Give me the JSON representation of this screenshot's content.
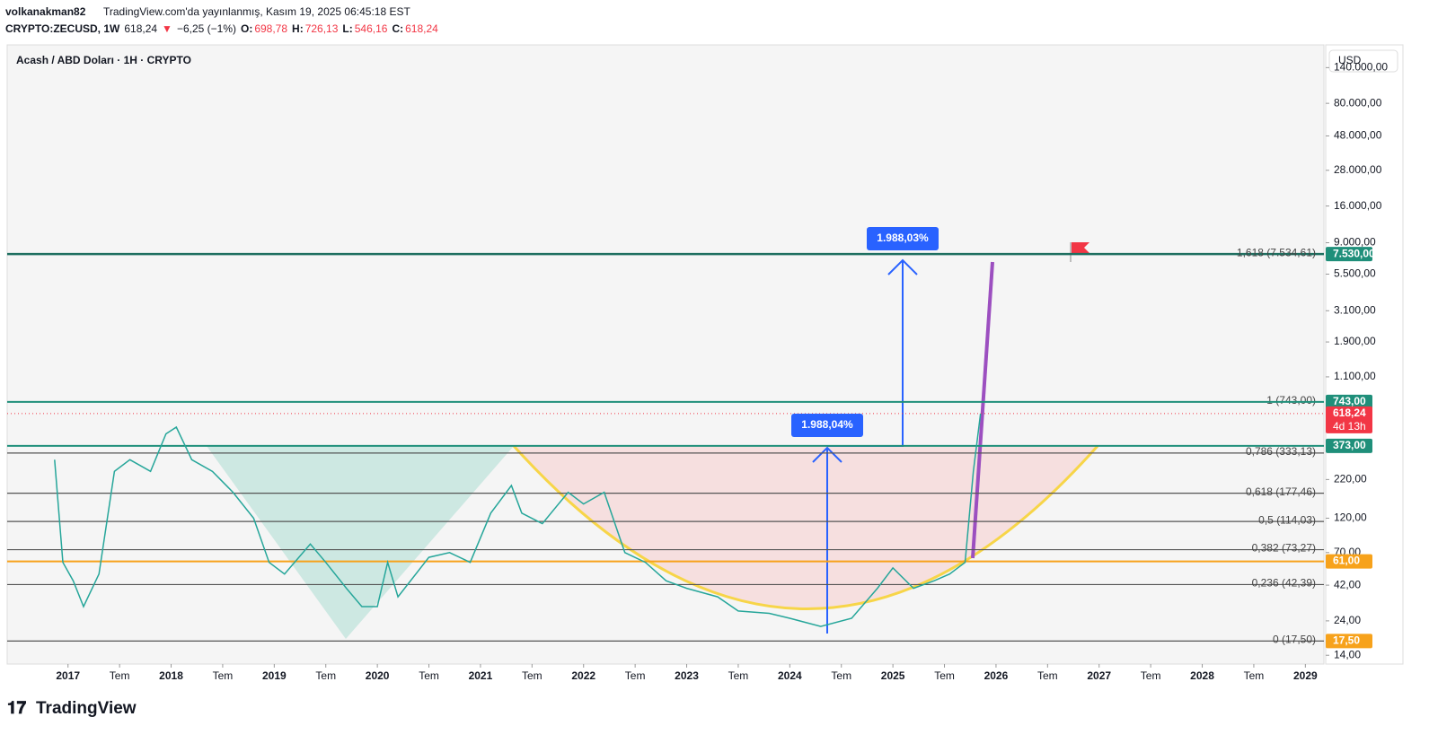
{
  "header": {
    "user": "volkanakman82",
    "published": "TradingView.com'da yayınlanmış, Kasım 19, 2025 06:45:18 EST",
    "symbol": "CRYPTO:ZECUSD, 1W",
    "last": "618,24",
    "arrow": "▼",
    "change": "−6,25 (−1%)",
    "open_label": "O:",
    "open": "698,78",
    "high_label": "H:",
    "high": "726,13",
    "low_label": "L:",
    "low": "546,16",
    "close_label": "C:",
    "close": "618,24"
  },
  "legend": "Acash / ABD Doları · 1H · CRYPTO",
  "currency": "USD",
  "footer": "TradingView",
  "chart_data": {
    "type": "line",
    "log_scale": true,
    "color": "#26a69a",
    "x": [
      2016.87,
      2016.95,
      2017.05,
      2017.15,
      2017.3,
      2017.45,
      2017.6,
      2017.8,
      2017.95,
      2018.05,
      2018.2,
      2018.4,
      2018.6,
      2018.8,
      2018.95,
      2019.1,
      2019.35,
      2019.5,
      2019.7,
      2019.85,
      2020.0,
      2020.1,
      2020.2,
      2020.5,
      2020.7,
      2020.9,
      2021.1,
      2021.3,
      2021.4,
      2021.6,
      2021.85,
      2022.0,
      2022.2,
      2022.4,
      2022.6,
      2022.8,
      2023.0,
      2023.3,
      2023.5,
      2023.8,
      2024.0,
      2024.3,
      2024.6,
      2024.85,
      2025.0,
      2025.2,
      2025.4,
      2025.55,
      2025.7,
      2025.78,
      2025.85
    ],
    "values": [
      300,
      60,
      45,
      30,
      50,
      250,
      300,
      250,
      450,
      500,
      300,
      250,
      180,
      120,
      60,
      50,
      80,
      60,
      40,
      30,
      30,
      60,
      35,
      65,
      70,
      60,
      130,
      200,
      130,
      110,
      180,
      150,
      180,
      70,
      60,
      45,
      40,
      35,
      28,
      27,
      25,
      22,
      25,
      40,
      55,
      40,
      45,
      50,
      60,
      250,
      618.24
    ],
    "xlim": [
      2016.41,
      2029.18
    ],
    "ylim": [
      12.2,
      200000
    ],
    "xticks": [
      2017,
      {
        "value": 2017.5,
        "label": "Tem"
      },
      2018,
      {
        "value": 2018.5,
        "label": "Tem"
      },
      2019,
      {
        "value": 2019.5,
        "label": "Tem"
      },
      2020,
      {
        "value": 2020.5,
        "label": "Tem"
      },
      2021,
      {
        "value": 2021.5,
        "label": "Tem"
      },
      2022,
      {
        "value": 2022.5,
        "label": "Tem"
      },
      2023,
      {
        "value": 2023.5,
        "label": "Tem"
      },
      2024,
      {
        "value": 2024.5,
        "label": "Tem"
      },
      2025,
      {
        "value": 2025.5,
        "label": "Tem"
      },
      2026,
      {
        "value": 2026.5,
        "label": "Tem"
      },
      2027,
      {
        "value": 2027.5,
        "label": "Tem"
      },
      2028,
      {
        "value": 2028.5,
        "label": "Tem"
      },
      2029
    ],
    "yticks": [
      {
        "value": 140000,
        "label": "140.000,00"
      },
      {
        "value": 80000,
        "label": "80.000,00"
      },
      {
        "value": 48000,
        "label": "48.000,00"
      },
      {
        "value": 28000,
        "label": "28.000,00"
      },
      {
        "value": 16000,
        "label": "16.000,00"
      },
      {
        "value": 9000,
        "label": "9.000,00"
      },
      {
        "value": 5500,
        "label": "5.500,00"
      },
      {
        "value": 3100,
        "label": "3.100,00"
      },
      {
        "value": 1900,
        "label": "1.900,00"
      },
      {
        "value": 1100,
        "label": "1.100,00"
      },
      {
        "value": 220,
        "label": "220,00"
      },
      {
        "value": 120,
        "label": "120,00"
      },
      {
        "value": 70,
        "label": "70,00"
      },
      {
        "value": 42,
        "label": "42,00"
      },
      {
        "value": 24,
        "label": "24,00"
      },
      {
        "value": 14,
        "label": "14,00"
      }
    ],
    "fib_levels": [
      {
        "value": 7534.61,
        "label": "1,618 (7.534,61)"
      },
      {
        "value": 743,
        "label": "1 (743,00)"
      },
      {
        "value": 333.13,
        "label": "0,786 (333,13)"
      },
      {
        "value": 177.46,
        "label": "0,618 (177,46)"
      },
      {
        "value": 114.03,
        "label": "0,5 (114,03)"
      },
      {
        "value": 73.27,
        "label": "0,382 (73,27)"
      },
      {
        "value": 42.39,
        "label": "0,236 (42,39)"
      },
      {
        "value": 17.5,
        "label": "0 (17,50)"
      }
    ],
    "price_tags": [
      {
        "value": 7530,
        "label": "7.530,00",
        "color": "#1f8f7a"
      },
      {
        "value": 743,
        "label": "743,00",
        "color": "#1f8f7a"
      },
      {
        "value": 618.24,
        "label": "618,24",
        "color": "#f23645"
      },
      {
        "value": 373,
        "label": "373,00",
        "color": "#1f8f7a"
      },
      {
        "value": 61,
        "label": "61,00",
        "color": "#f7a21b"
      },
      {
        "value": 17.5,
        "label": "17,50",
        "color": "#f7a21b"
      }
    ],
    "countdown": "4d 13h",
    "annotations": [
      {
        "value": 1988.03,
        "label": "1.988,03%"
      },
      {
        "value": 1988.04,
        "label": "1.988,04%"
      }
    ]
  }
}
